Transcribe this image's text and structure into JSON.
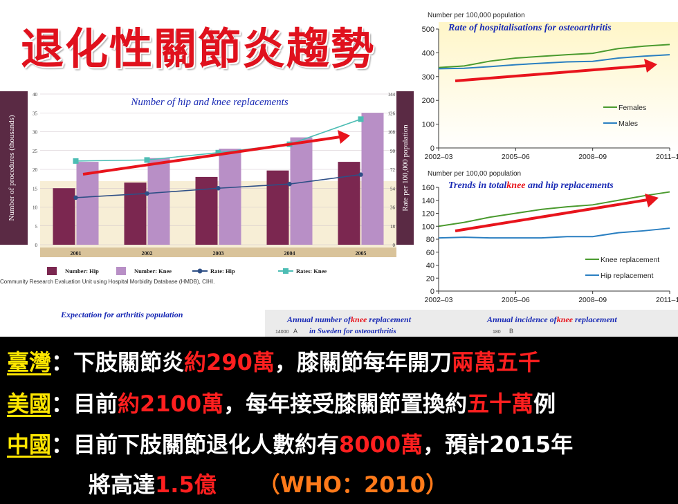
{
  "title": "退化性關節炎趨勢",
  "chart_data": [
    {
      "type": "bar",
      "title": "Number of hip and knee replacements",
      "categories": [
        "2001",
        "2002",
        "2003",
        "2004",
        "2005"
      ],
      "series": [
        {
          "name": "Number: Hip",
          "values": [
            15,
            16.5,
            18,
            19.7,
            22
          ],
          "color": "#7b2750",
          "axis": "left"
        },
        {
          "name": "Number: Knee",
          "values": [
            22,
            23,
            25.5,
            28.5,
            35
          ],
          "color": "#b88fc6",
          "axis": "left"
        },
        {
          "name": "Rate: Hip",
          "values": [
            45,
            49,
            54,
            58,
            67
          ],
          "color": "#2e4f86",
          "axis": "right",
          "type": "line"
        },
        {
          "name": "Rates: Knee",
          "values": [
            80,
            81,
            88,
            96,
            120
          ],
          "color": "#4dbdb4",
          "axis": "right",
          "type": "line"
        }
      ],
      "ylabel": "Number of procedures (thousands)",
      "ylabel_right": "Rate per 100,000 population",
      "ylim": [
        0,
        40
      ],
      "yticks": [
        "0",
        "5",
        "10",
        "15",
        "20",
        "25",
        "30",
        "35",
        "40"
      ],
      "ylim_right": [
        0,
        144
      ],
      "yticks_right": [
        "0",
        "18",
        "36",
        "54",
        "72",
        "90",
        "108",
        "126",
        "144"
      ],
      "source": "Community Research Evaluation Unit using Hospital Morbidity Database (HMDB), CIHI.",
      "trend_arrow_color": "#e8141c"
    },
    {
      "type": "line",
      "title": "Rate of hospitalisations for osteoarthritis",
      "ylabel": "Number per 100,000 population",
      "x": [
        "2002–03",
        "2003–04",
        "2004–05",
        "2005–06",
        "2006–07",
        "2007–08",
        "2008–09",
        "2009–10",
        "2010–11",
        "2011–12"
      ],
      "xticks": [
        "2002–03",
        "2005–06",
        "2008–09",
        "2011–12"
      ],
      "ylim": [
        0,
        500
      ],
      "yticks": [
        "0",
        "100",
        "200",
        "300",
        "400",
        "500"
      ],
      "series": [
        {
          "name": "Females",
          "values": [
            338,
            345,
            365,
            378,
            385,
            392,
            398,
            418,
            428,
            435
          ],
          "color": "#4a9a2e"
        },
        {
          "name": "Males",
          "values": [
            333,
            335,
            342,
            350,
            356,
            362,
            364,
            378,
            386,
            392
          ],
          "color": "#2a7fc1"
        }
      ],
      "legend": "right"
    },
    {
      "type": "line",
      "title_parts": [
        "Trends in total",
        "knee",
        " and hip replacements"
      ],
      "ylabel": "Number per 100,00 population",
      "x": [
        "2002–03",
        "2003–04",
        "2004–05",
        "2005–06",
        "2006–07",
        "2007–08",
        "2008–09",
        "2009–10",
        "2010–11",
        "2011–12"
      ],
      "xticks": [
        "2002–03",
        "2005–06",
        "2008–09",
        "2011–12"
      ],
      "ylim": [
        0,
        160
      ],
      "yticks": [
        "0",
        "20",
        "40",
        "60",
        "80",
        "100",
        "120",
        "140",
        "160"
      ],
      "series": [
        {
          "name": "Knee replacement",
          "values": [
            100,
            106,
            114,
            120,
            126,
            130,
            133,
            140,
            147,
            153
          ],
          "color": "#4a9a2e"
        },
        {
          "name": "Hip replacement",
          "values": [
            82,
            83,
            82,
            82,
            82,
            84,
            84,
            90,
            93,
            97
          ],
          "color": "#2a7fc1"
        }
      ],
      "legend": "right"
    }
  ],
  "captions": {
    "expectation": "Expectation for arthritis population",
    "sweden_1": "Annual number of",
    "sweden_knee": "knee",
    "sweden_2": " replacement",
    "sweden_3": "in Sweden for osteoarthritis",
    "incidence_1": "Annual incidence of",
    "incidence_knee": "knee",
    "incidence_2": " replacement",
    "sweden_tick": "14000",
    "sweden_letter": "A",
    "incidence_tick": "180",
    "incidence_letter": "B"
  },
  "facts": [
    {
      "country": "臺灣",
      "sep": "：",
      "parts": [
        {
          "text": "下肢關節炎",
          "style": "white"
        },
        {
          "text": "約290萬",
          "style": "red"
        },
        {
          "text": "，膝關節每年開刀",
          "style": "white"
        },
        {
          "text": "兩萬五千",
          "style": "red"
        }
      ]
    },
    {
      "country": "美國",
      "sep": "：",
      "parts": [
        {
          "text": "目前",
          "style": "white"
        },
        {
          "text": "約2100萬",
          "style": "red"
        },
        {
          "text": "，每年接受膝關節置換約",
          "style": "white"
        },
        {
          "text": "五十萬",
          "style": "red"
        },
        {
          "text": "例",
          "style": "white"
        }
      ]
    },
    {
      "country": "中國",
      "sep": "：",
      "parts": [
        {
          "text": "目前下肢關節退化人數約有",
          "style": "white"
        },
        {
          "text": "8000萬",
          "style": "red"
        },
        {
          "text": "，預計2015年",
          "style": "white"
        }
      ]
    }
  ],
  "final_line": {
    "prefix": "將高達",
    "value": "1.5億",
    "source": "（WHO：2010）"
  }
}
